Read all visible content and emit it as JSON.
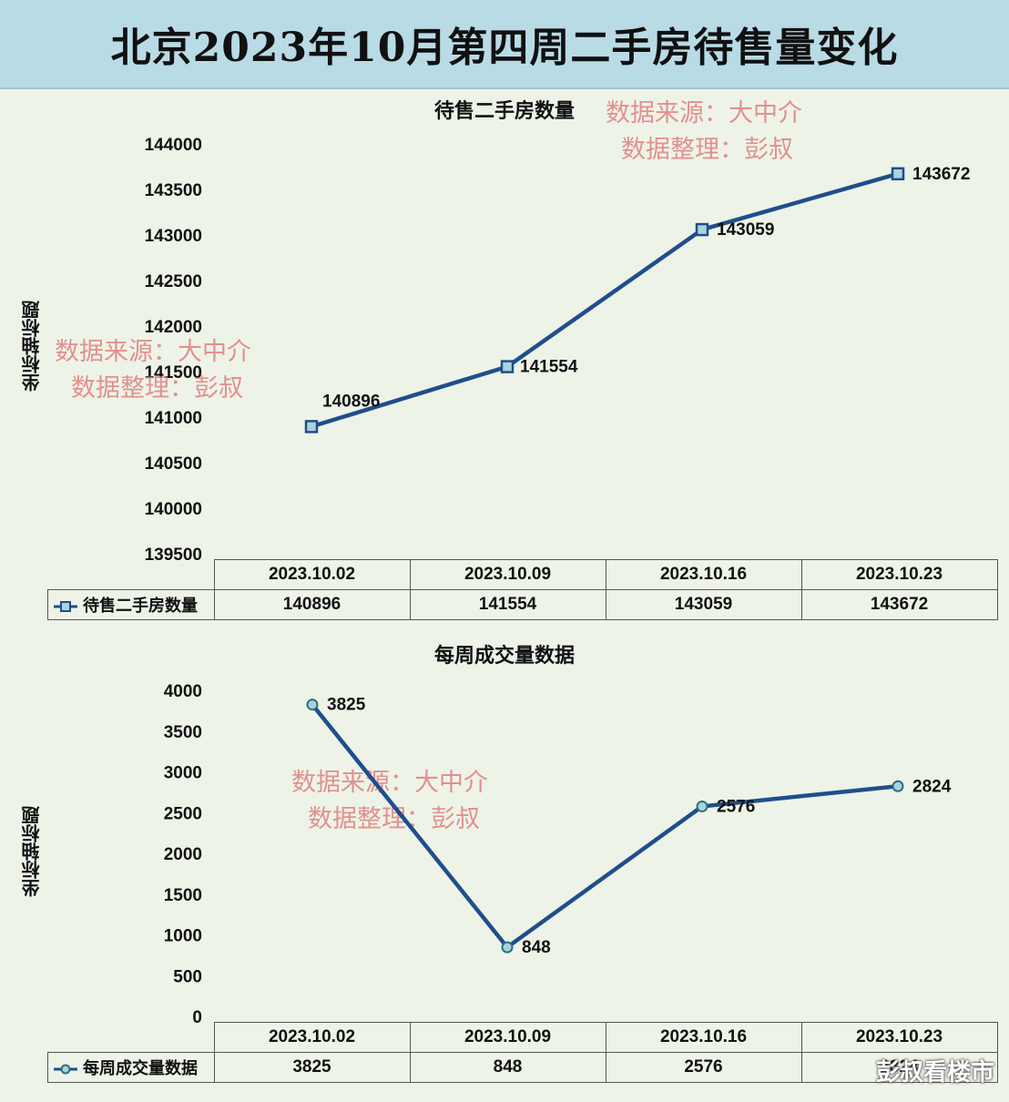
{
  "title": "北京2023年10月第四周二手房待售量变化",
  "watermarks": {
    "source": "数据来源：大中介",
    "organizer": "数据整理：彭叔",
    "corner": "彭叔看楼市"
  },
  "chart_data": [
    {
      "type": "line",
      "title": "待售二手房数量",
      "ylabel": "坐标轴标题",
      "categories": [
        "2023.10.02",
        "2023.10.09",
        "2023.10.16",
        "2023.10.23"
      ],
      "series": [
        {
          "name": "待售二手房数量",
          "values": [
            140896,
            141554,
            143059,
            143672
          ]
        }
      ],
      "ylim": [
        139500,
        144000
      ],
      "yticks": [
        139500,
        140000,
        140500,
        141000,
        141500,
        142000,
        142500,
        143000,
        143500,
        144000
      ],
      "marker": "square",
      "color": "#1f4e8c",
      "data_table": true
    },
    {
      "type": "line",
      "title": "每周成交量数据",
      "ylabel": "坐标轴标题",
      "categories": [
        "2023.10.02",
        "2023.10.09",
        "2023.10.16",
        "2023.10.23"
      ],
      "series": [
        {
          "name": "每周成交量数据",
          "values": [
            3825,
            848,
            2576,
            2824
          ]
        }
      ],
      "ylim": [
        0,
        4000
      ],
      "yticks": [
        0,
        500,
        1000,
        1500,
        2000,
        2500,
        3000,
        3500,
        4000
      ],
      "marker": "circle",
      "color": "#1f4e8c",
      "data_table": true
    }
  ]
}
